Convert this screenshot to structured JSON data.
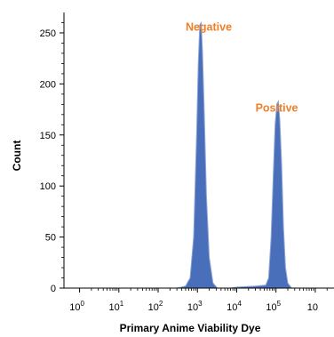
{
  "chart_data": {
    "type": "area",
    "xlabel": "Primary Anime Viability Dye",
    "ylabel": "Count",
    "x_scale": "log",
    "xlim": [
      0.4,
      3000000
    ],
    "ylim": [
      0,
      270
    ],
    "x_ticks": [
      {
        "value": 1,
        "base": "10",
        "exp": "0"
      },
      {
        "value": 10,
        "base": "10",
        "exp": "1"
      },
      {
        "value": 100,
        "base": "10",
        "exp": "2"
      },
      {
        "value": 1000,
        "base": "10",
        "exp": "3"
      },
      {
        "value": 10000,
        "base": "10",
        "exp": "4"
      },
      {
        "value": 100000,
        "base": "10",
        "exp": "5"
      },
      {
        "value": 1000000,
        "base": "10",
        "exp": ""
      }
    ],
    "y_ticks": [
      0,
      50,
      100,
      150,
      200,
      250
    ],
    "series": [
      {
        "color": "#4a6fba",
        "points": [
          [
            300,
            0
          ],
          [
            500,
            2
          ],
          [
            650,
            10
          ],
          [
            800,
            50
          ],
          [
            950,
            150
          ],
          [
            1050,
            220
          ],
          [
            1150,
            258
          ],
          [
            1250,
            260
          ],
          [
            1350,
            230
          ],
          [
            1500,
            170
          ],
          [
            1700,
            90
          ],
          [
            2000,
            30
          ],
          [
            2500,
            5
          ],
          [
            3200,
            0
          ],
          [
            7000,
            0
          ],
          [
            10000,
            1
          ],
          [
            30000,
            2
          ],
          [
            55000,
            3
          ],
          [
            65000,
            10
          ],
          [
            75000,
            50
          ],
          [
            85000,
            110
          ],
          [
            95000,
            160
          ],
          [
            105000,
            180
          ],
          [
            115000,
            183
          ],
          [
            125000,
            165
          ],
          [
            140000,
            120
          ],
          [
            155000,
            60
          ],
          [
            175000,
            20
          ],
          [
            200000,
            5
          ],
          [
            250000,
            0
          ]
        ]
      }
    ],
    "annotations": [
      {
        "text": "Negative",
        "color": "#f07f2a",
        "x": 500,
        "y": 252
      },
      {
        "text": "Positive",
        "color": "#f07f2a",
        "x": 30000,
        "y": 173
      }
    ],
    "grid": false
  }
}
